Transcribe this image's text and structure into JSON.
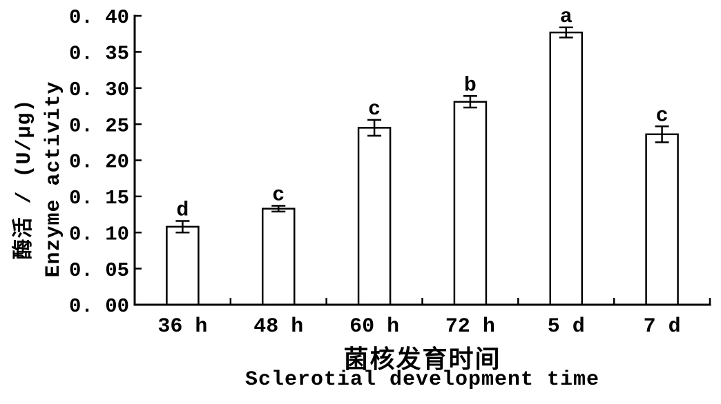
{
  "chart_data": {
    "type": "bar",
    "categories": [
      "36 h",
      "48 h",
      "60 h",
      "72 h",
      "5 d",
      "7 d"
    ],
    "values": [
      0.108,
      0.133,
      0.245,
      0.281,
      0.377,
      0.236
    ],
    "errors": [
      0.008,
      0.004,
      0.011,
      0.008,
      0.007,
      0.011
    ],
    "sig_letters": [
      "d",
      "c",
      "c",
      "b",
      "a",
      "c"
    ],
    "ylabel_cn": "酶活 / (U/μg)",
    "ylabel_en": "Enzyme activity",
    "xlabel_cn": "菌核发育时间",
    "xlabel_en": "Sclerotial development time",
    "ylim": [
      0.0,
      0.4
    ],
    "y_tick_step": 0.05,
    "y_tick_labels": [
      "0. 00",
      "0. 05",
      "0. 10",
      "0. 15",
      "0. 20",
      "0. 25",
      "0. 30",
      "0. 35",
      "0. 40"
    ],
    "bar_fill": "#ffffff",
    "stroke_color": "#000000",
    "grid": false,
    "legend": "none"
  }
}
